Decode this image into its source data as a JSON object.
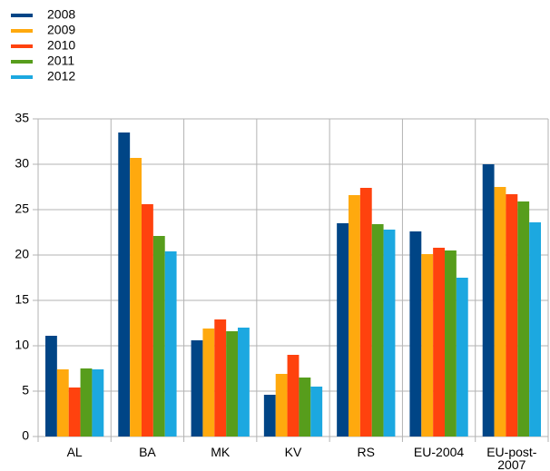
{
  "chart_data": {
    "type": "bar",
    "categories": [
      "AL",
      "BA",
      "MK",
      "KV",
      "RS",
      "EU-2004",
      "EU-post-2007"
    ],
    "series": [
      {
        "name": "2008",
        "color": "#004586",
        "values": [
          11.1,
          33.5,
          10.6,
          4.6,
          23.5,
          22.6,
          30.0
        ]
      },
      {
        "name": "2009",
        "color": "#ffa90e",
        "values": [
          7.4,
          30.7,
          11.9,
          6.9,
          26.6,
          20.1,
          27.5
        ]
      },
      {
        "name": "2010",
        "color": "#ff420e",
        "values": [
          5.4,
          25.6,
          12.9,
          9.0,
          27.4,
          20.8,
          26.7
        ]
      },
      {
        "name": "2011",
        "color": "#579d1c",
        "values": [
          7.5,
          22.1,
          11.6,
          6.5,
          23.4,
          20.5,
          25.9
        ]
      },
      {
        "name": "2012",
        "color": "#1ca8e0",
        "values": [
          7.4,
          20.4,
          12.0,
          5.5,
          22.8,
          17.5,
          23.6
        ]
      }
    ],
    "ylim": [
      0,
      35
    ],
    "yticks": [
      0,
      5,
      10,
      15,
      20,
      25,
      30,
      35
    ],
    "grid": true,
    "legend": "top-left"
  }
}
